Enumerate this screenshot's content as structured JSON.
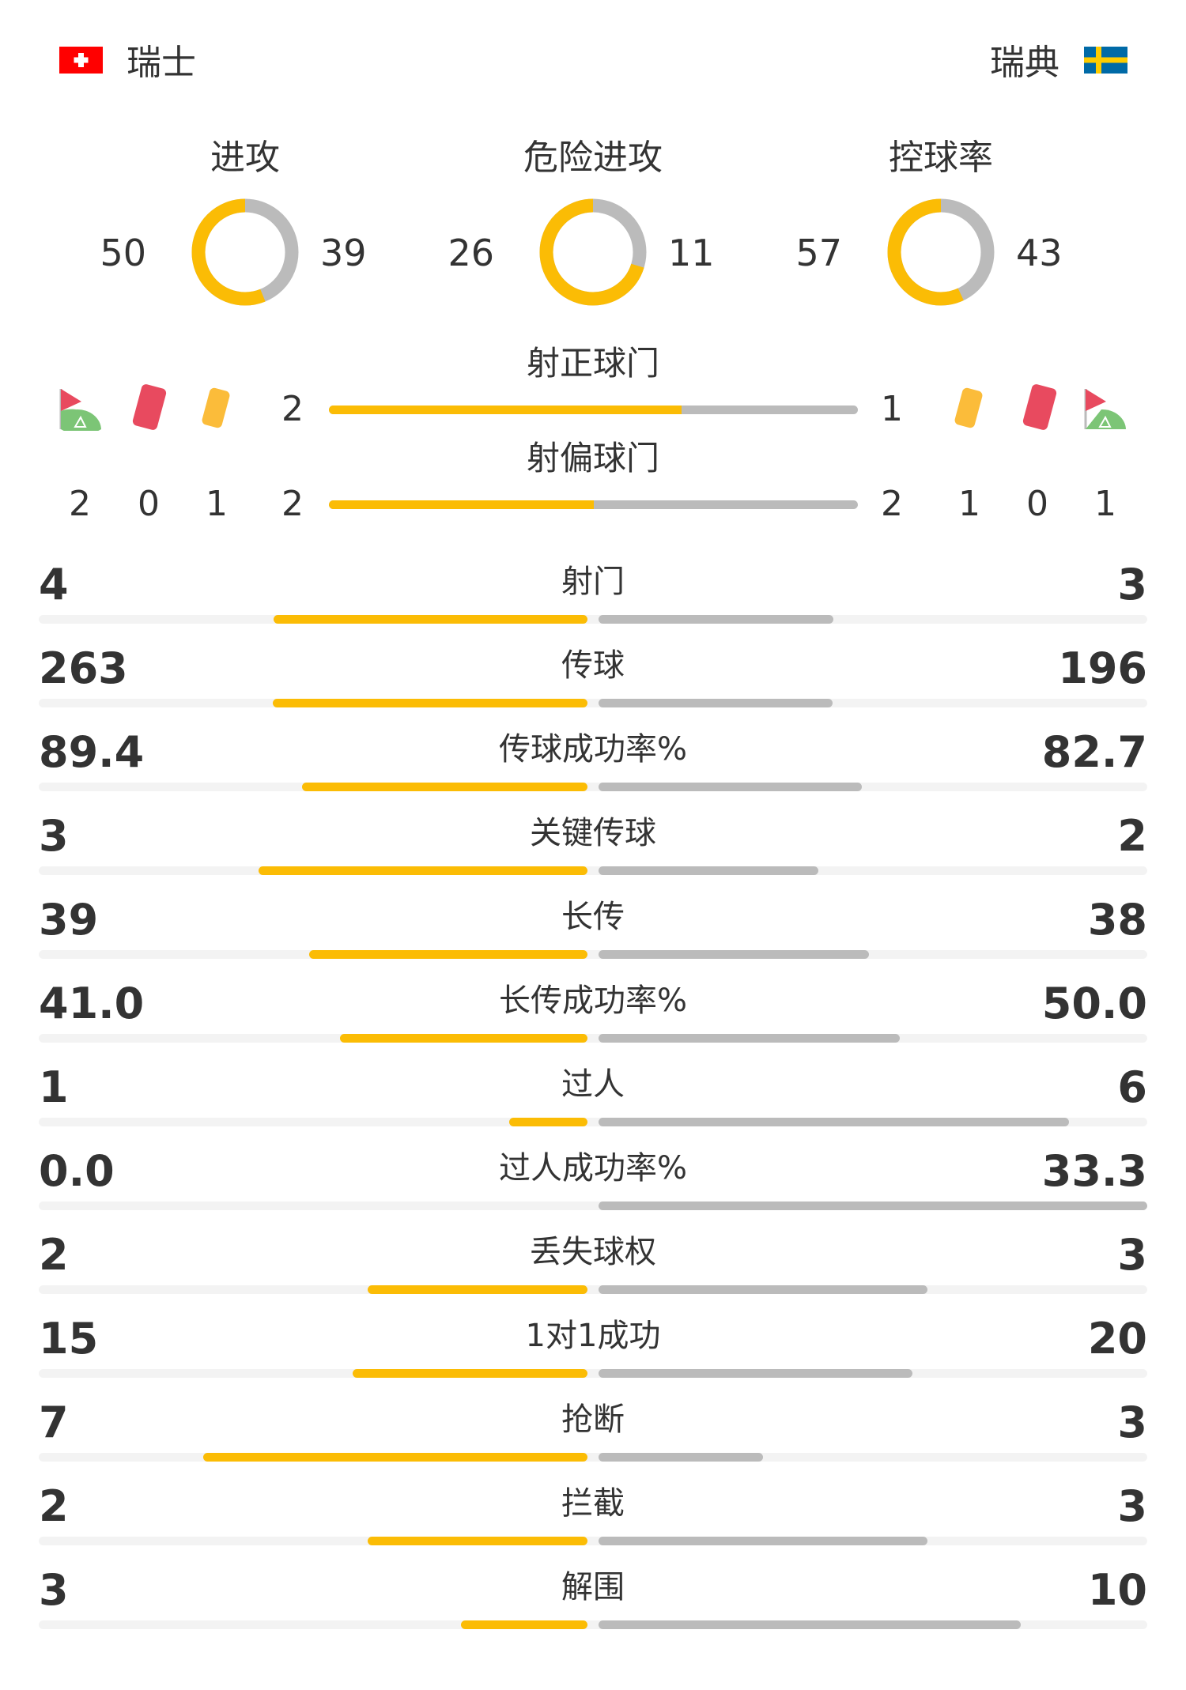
{
  "colors": {
    "home": "#fbbc05",
    "away": "#bbbbbb",
    "track": "#f3f3f3",
    "text": "#333333"
  },
  "header": {
    "home": {
      "name": "瑞士",
      "flag": "switzerland-flag"
    },
    "away": {
      "name": "瑞典",
      "flag": "sweden-flag"
    }
  },
  "donuts": [
    {
      "label": "进攻",
      "home": 50,
      "away": 39
    },
    {
      "label": "危险进攻",
      "home": 26,
      "away": 11
    },
    {
      "label": "控球率",
      "home": 57,
      "away": 43
    }
  ],
  "shots": {
    "on_target": {
      "label": "射正球门",
      "home": 2,
      "away": 1
    },
    "off_target": {
      "label": "射偏球门",
      "home": 2,
      "away": 2
    },
    "home_icons": {
      "corners": 2,
      "red_cards": 0,
      "yellow_cards": 1
    },
    "away_icons": {
      "corners": 1,
      "red_cards": 0,
      "yellow_cards": 1
    }
  },
  "stats": [
    {
      "label": "射门",
      "home": "4",
      "away": "3"
    },
    {
      "label": "传球",
      "home": "263",
      "away": "196"
    },
    {
      "label": "传球成功率%",
      "home": "89.4",
      "away": "82.7"
    },
    {
      "label": "关键传球",
      "home": "3",
      "away": "2"
    },
    {
      "label": "长传",
      "home": "39",
      "away": "38"
    },
    {
      "label": "长传成功率%",
      "home": "41.0",
      "away": "50.0"
    },
    {
      "label": "过人",
      "home": "1",
      "away": "6"
    },
    {
      "label": "过人成功率%",
      "home": "0.0",
      "away": "33.3"
    },
    {
      "label": "丢失球权",
      "home": "2",
      "away": "3"
    },
    {
      "label": "1对1成功",
      "home": "15",
      "away": "20"
    },
    {
      "label": "抢断",
      "home": "7",
      "away": "3"
    },
    {
      "label": "拦截",
      "home": "2",
      "away": "3"
    },
    {
      "label": "解围",
      "home": "3",
      "away": "10"
    }
  ]
}
